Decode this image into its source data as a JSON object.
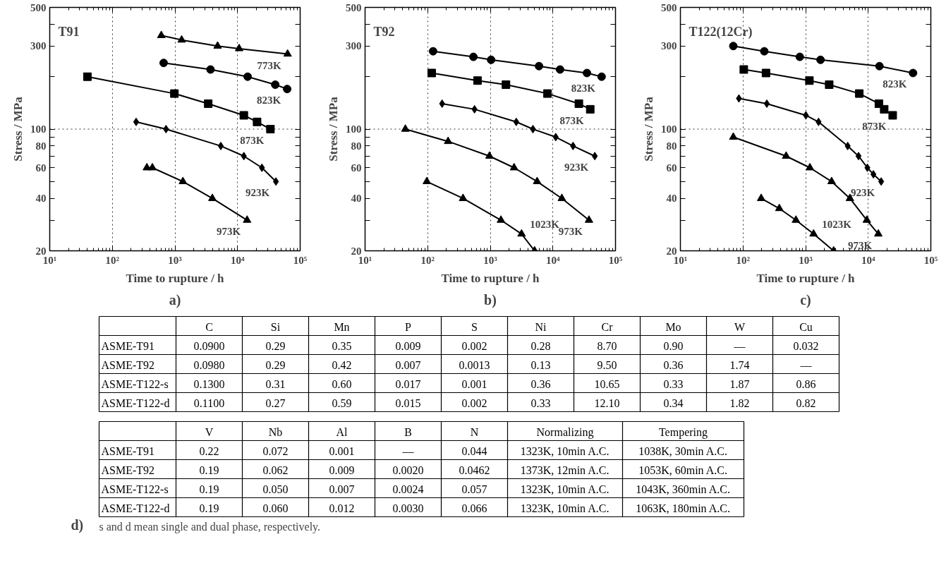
{
  "chart_data": [
    {
      "type": "line",
      "title": "T91",
      "legend": "right",
      "xlabel": "Time to rupture / h",
      "ylabel": "Stress / MPa",
      "log": "xy",
      "grid": "x",
      "xlim": [
        10,
        100000
      ],
      "ylim": [
        20,
        500
      ],
      "xticks": [
        {
          "value": 10,
          "label": "10¹"
        },
        {
          "value": 100,
          "label": "10²"
        },
        {
          "value": 1000,
          "label": "10³"
        },
        {
          "value": 10000,
          "label": "10⁴"
        },
        {
          "value": 100000,
          "label": "10⁵"
        }
      ],
      "yticks": [
        20,
        {
          "value": 30,
          "label": null
        },
        40,
        {
          "value": 50,
          "label": null
        },
        60,
        {
          "value": 70,
          "label": null
        },
        80,
        {
          "value": 90,
          "label": null
        },
        100,
        {
          "value": 200,
          "label": null
        },
        300,
        {
          "value": 400,
          "label": null
        },
        500
      ],
      "ref_lines": [
        {
          "axis": "y",
          "value": 100,
          "label": null,
          "line_style": "dotted",
          "color": "#000000"
        }
      ],
      "annotations": [
        "a)"
      ],
      "series": [
        {
          "name": "773K",
          "color": "#000000",
          "marker": "triangle",
          "x": [
            605,
            1280,
            4800,
            10600,
            63000
          ],
          "values": [
            345,
            325,
            300,
            290,
            270
          ]
        },
        {
          "name": "823K",
          "color": "#000000",
          "marker": "circle",
          "x": [
            660,
            3700,
            14500,
            40000,
            62000
          ],
          "values": [
            240,
            220,
            200,
            180,
            170
          ]
        },
        {
          "name": "873K",
          "color": "#000000",
          "marker": "square",
          "x": [
            40,
            980,
            3400,
            12600,
            20500,
            33500
          ],
          "values": [
            200,
            160,
            140,
            120,
            110,
            100
          ]
        },
        {
          "name": "923K",
          "color": "#000000",
          "marker": "diamond",
          "x": [
            240,
            720,
            5400,
            12600,
            24500,
            41000
          ],
          "values": [
            110,
            100,
            80,
            70,
            60,
            50
          ]
        },
        {
          "name": "973K",
          "color": "#000000",
          "marker": "triangle",
          "x": [
            356,
            436,
            1340,
            3960,
            14200
          ],
          "values": [
            60,
            60,
            50,
            40,
            30
          ]
        }
      ]
    },
    {
      "type": "line",
      "title": "T92",
      "legend": "right",
      "xlabel": "Time to rupture / h",
      "ylabel": "Stress / MPa",
      "log": "xy",
      "grid": "x",
      "xlim": [
        10,
        100000
      ],
      "ylim": [
        20,
        500
      ],
      "xticks": [
        {
          "value": 10,
          "label": "10¹"
        },
        {
          "value": 100,
          "label": "10²"
        },
        {
          "value": 1000,
          "label": "10³"
        },
        {
          "value": 10000,
          "label": "10⁴"
        },
        {
          "value": 100000,
          "label": "10⁵"
        }
      ],
      "yticks": [
        20,
        {
          "value": 30,
          "label": null
        },
        40,
        {
          "value": 50,
          "label": null
        },
        60,
        {
          "value": 70,
          "label": null
        },
        80,
        {
          "value": 90,
          "label": null
        },
        100,
        {
          "value": 200,
          "label": null
        },
        300,
        {
          "value": 400,
          "label": null
        },
        500
      ],
      "ref_lines": [
        {
          "axis": "y",
          "value": 100,
          "label": null,
          "line_style": "dotted",
          "color": "#000000"
        }
      ],
      "annotations": [
        "b)"
      ],
      "series": [
        {
          "name": "823K",
          "color": "#000000",
          "marker": "circle",
          "x": [
            122,
            538,
            1030,
            6000,
            13000,
            35000,
            60000
          ],
          "values": [
            280,
            260,
            250,
            230,
            220,
            210,
            200
          ]
        },
        {
          "name": "873K",
          "color": "#000000",
          "marker": "square",
          "x": [
            116,
            625,
            1780,
            8200,
            26000,
            39500
          ],
          "values": [
            210,
            190,
            180,
            160,
            140,
            130
          ]
        },
        {
          "name": "923K",
          "color": "#000000",
          "marker": "diamond",
          "x": [
            170,
            560,
            2600,
            4800,
            11100,
            21000,
            46700
          ],
          "values": [
            140,
            130,
            110,
            100,
            90,
            80,
            70
          ]
        },
        {
          "name": "973K",
          "color": "#000000",
          "marker": "triangle",
          "x": [
            44,
            212,
            970,
            2400,
            5600,
            13900,
            37700
          ],
          "values": [
            100,
            85,
            70,
            60,
            50,
            40,
            30
          ]
        },
        {
          "name": "1023K",
          "color": "#000000",
          "marker": "triangle",
          "x": [
            97,
            367,
            1480,
            3160,
            5100
          ],
          "values": [
            50,
            40,
            30,
            25,
            20
          ]
        }
      ]
    },
    {
      "type": "line",
      "title": "T122(12Cr)",
      "legend": "right",
      "xlabel": "Time to rupture / h",
      "ylabel": "Stress / MPa",
      "log": "xy",
      "grid": "x",
      "xlim": [
        10,
        100000
      ],
      "ylim": [
        20,
        500
      ],
      "xticks": [
        {
          "value": 10,
          "label": "10¹"
        },
        {
          "value": 100,
          "label": "10²"
        },
        {
          "value": 1000,
          "label": "10³"
        },
        {
          "value": 10000,
          "label": "10⁴"
        },
        {
          "value": 100000,
          "label": "10⁵"
        }
      ],
      "yticks": [
        20,
        {
          "value": 30,
          "label": null
        },
        40,
        {
          "value": 50,
          "label": null
        },
        60,
        {
          "value": 70,
          "label": null
        },
        80,
        {
          "value": 90,
          "label": null
        },
        100,
        {
          "value": 200,
          "label": null
        },
        300,
        {
          "value": 400,
          "label": null
        },
        500
      ],
      "ref_lines": [
        {
          "axis": "y",
          "value": 100,
          "label": null,
          "line_style": "dotted",
          "color": "#000000"
        }
      ],
      "annotations": [
        "c)"
      ],
      "series": [
        {
          "name": "823K",
          "color": "#000000",
          "marker": "circle",
          "x": [
            70,
            219,
            807,
            1730,
            15100,
            52000
          ],
          "values": [
            300,
            280,
            260,
            250,
            230,
            210
          ]
        },
        {
          "name": "873K",
          "color": "#000000",
          "marker": "square",
          "x": [
            103,
            233,
            1150,
            2380,
            7200,
            14800,
            18000,
            24600
          ],
          "values": [
            220,
            210,
            190,
            180,
            160,
            140,
            130,
            120
          ]
        },
        {
          "name": "923K",
          "color": "#000000",
          "marker": "diamond",
          "x": [
            86,
            240,
            1010,
            1610,
            4700,
            7000,
            9700,
            12100,
            16100
          ],
          "values": [
            150,
            140,
            120,
            110,
            80,
            70,
            60,
            55,
            50
          ]
        },
        {
          "name": "973K",
          "color": "#000000",
          "marker": "triangle",
          "x": [
            70,
            488,
            1170,
            2600,
            5100,
            9500,
            14500
          ],
          "values": [
            90,
            70,
            60,
            50,
            40,
            30,
            25
          ]
        },
        {
          "name": "1023K",
          "color": "#000000",
          "marker": "triangle",
          "x": [
            195,
            380,
            700,
            1340,
            2800
          ],
          "values": [
            40,
            35,
            30,
            25,
            20
          ]
        }
      ]
    },
    {
      "type": "other",
      "categories": [
        null,
        "C",
        "Si",
        "Mn",
        "P",
        "S",
        "Ni",
        "Cr",
        "Mo",
        "W",
        "Cu"
      ],
      "y_categories": [
        "ASME-T91",
        "ASME-T92",
        "ASME-T122-s",
        "ASME-T122-d"
      ],
      "cell_labels": [
        [
          "0.0900",
          "0.29",
          "0.35",
          "0.009",
          "0.002",
          "0.28",
          "8.70",
          "0.90",
          "—",
          "0.032"
        ],
        [
          "0.0980",
          "0.29",
          "0.42",
          "0.007",
          "0.0013",
          "0.13",
          "9.50",
          "0.36",
          "1.74",
          "—"
        ],
        [
          "0.1300",
          "0.31",
          "0.60",
          "0.017",
          "0.001",
          "0.36",
          "10.65",
          "0.33",
          "1.87",
          "0.86"
        ],
        [
          "0.1100",
          "0.27",
          "0.59",
          "0.015",
          "0.002",
          "0.33",
          "12.10",
          "0.34",
          "1.82",
          "0.82"
        ]
      ]
    },
    {
      "type": "other",
      "categories": [
        null,
        "V",
        "Nb",
        "Al",
        "B",
        "N",
        "Normalizing",
        "Tempering"
      ],
      "y_categories": [
        "ASME-T91",
        "ASME-T92",
        "ASME-T122-s",
        "ASME-T122-d"
      ],
      "cell_labels": [
        [
          "0.22",
          "0.072",
          "0.001",
          "—",
          "0.044",
          "1323K, 10min A.C.",
          "1038K, 30min A.C."
        ],
        [
          "0.19",
          "0.062",
          "0.009",
          "0.0020",
          "0.0462",
          "1373K, 12min A.C.",
          "1053K, 60min A.C."
        ],
        [
          "0.19",
          "0.050",
          "0.007",
          "0.0024",
          "0.057",
          "1323K, 10min A.C.",
          "1043K, 360min A.C."
        ],
        [
          "0.19",
          "0.060",
          "0.012",
          "0.0030",
          "0.066",
          "1323K, 10min A.C.",
          "1063K, 180min A.C."
        ]
      ],
      "annotations": [
        "d)",
        "s and d mean single and dual phase, respectively."
      ]
    }
  ]
}
